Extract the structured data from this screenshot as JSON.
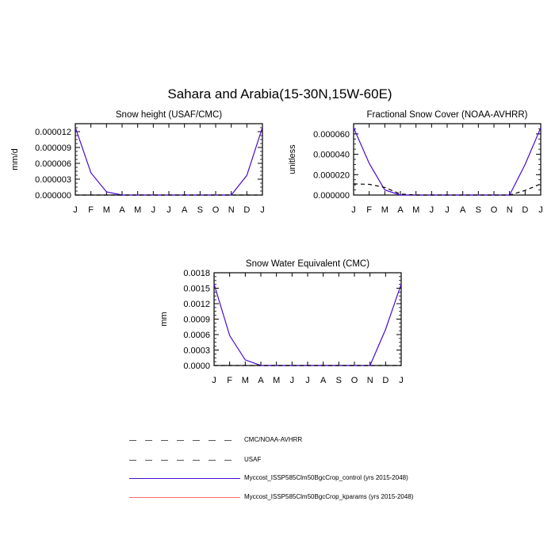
{
  "figure_title": "Sahara and Arabia(15-30N,15W-60E)",
  "month_labels": [
    "J",
    "F",
    "M",
    "A",
    "M",
    "J",
    "J",
    "A",
    "S",
    "O",
    "N",
    "D",
    "J"
  ],
  "colors": {
    "control": "#4b0ad0",
    "kparams": "#ff6a6a",
    "obs": "#000000",
    "axis": "#000000"
  },
  "legend": [
    {
      "label": "CMC/NOAA-AVHRR",
      "style": "long-dash",
      "color": "#555555"
    },
    {
      "label": "USAF",
      "style": "long-dash",
      "color": "#555555"
    },
    {
      "label": "Myccost_ISSP585Clm50BgcCrop_control (yrs 2015-2048)",
      "style": "solid",
      "color": "#4b0ad0"
    },
    {
      "label": "Myccost_ISSP585Clm50BgcCrop_kparams (yrs 2015-2048)",
      "style": "solid",
      "color": "#ff6a6a"
    }
  ],
  "chart_data": [
    {
      "type": "line",
      "title": "Snow height (USAF/CMC)",
      "xlabel": "",
      "ylabel": "mm/d",
      "ylim": [
        0,
        1.35e-05
      ],
      "yticks": [
        "0.000000",
        "0.000003",
        "0.000006",
        "0.000009",
        "0.000012"
      ],
      "ytick_values": [
        0,
        3e-06,
        6e-06,
        9e-06,
        1.2e-05
      ],
      "x": [
        "J",
        "F",
        "M",
        "A",
        "M",
        "J",
        "J",
        "A",
        "S",
        "O",
        "N",
        "D",
        "J"
      ],
      "series": [
        {
          "key": "control",
          "values": [
            1.28e-05,
            4.2e-06,
            6e-07,
            0,
            0,
            0,
            0,
            0,
            0,
            0,
            0,
            3.7e-06,
            1.28e-05
          ]
        },
        {
          "key": "obs",
          "values": [
            0,
            0,
            0,
            0,
            0,
            0,
            0,
            0,
            0,
            0,
            0,
            0,
            0
          ]
        }
      ]
    },
    {
      "type": "line",
      "title": "Fractional Snow Cover (NOAA-AVHRR)",
      "xlabel": "",
      "ylabel": "unitless",
      "ylim": [
        0,
        7e-05
      ],
      "yticks": [
        "0.000000",
        "0.000020",
        "0.000040",
        "0.000060"
      ],
      "ytick_values": [
        0,
        2e-05,
        4e-05,
        6e-05
      ],
      "x": [
        "J",
        "F",
        "M",
        "A",
        "M",
        "J",
        "J",
        "A",
        "S",
        "O",
        "N",
        "D",
        "J"
      ],
      "series": [
        {
          "key": "control",
          "values": [
            6.6e-05,
            3.1e-05,
            5e-06,
            0,
            0,
            0,
            0,
            0,
            0,
            0,
            0,
            3e-05,
            6.6e-05
          ]
        },
        {
          "key": "obs",
          "values": [
            1.1e-05,
            1.05e-05,
            7.5e-06,
            1e-06,
            0,
            0,
            0,
            0,
            0,
            0,
            0,
            4.5e-06,
            1.1e-05
          ]
        }
      ]
    },
    {
      "type": "line",
      "title": "Snow Water Equivalent (CMC)",
      "xlabel": "",
      "ylabel": "mm",
      "ylim": [
        0,
        0.0018
      ],
      "yticks": [
        "0.0000",
        "0.0003",
        "0.0006",
        "0.0009",
        "0.0012",
        "0.0015",
        "0.0018"
      ],
      "ytick_values": [
        0,
        0.0003,
        0.0006,
        0.0009,
        0.0012,
        0.0015,
        0.0018
      ],
      "x": [
        "J",
        "F",
        "M",
        "A",
        "M",
        "J",
        "J",
        "A",
        "S",
        "O",
        "N",
        "D",
        "J"
      ],
      "series": [
        {
          "key": "control",
          "values": [
            0.00158,
            0.00058,
            0.00011,
            0,
            0,
            0,
            0,
            0,
            0,
            0,
            0,
            0.0007,
            0.00158
          ]
        },
        {
          "key": "obs",
          "values": [
            0,
            0,
            0,
            0,
            0,
            0,
            0,
            0,
            0,
            0,
            0,
            0,
            0
          ]
        }
      ]
    }
  ]
}
